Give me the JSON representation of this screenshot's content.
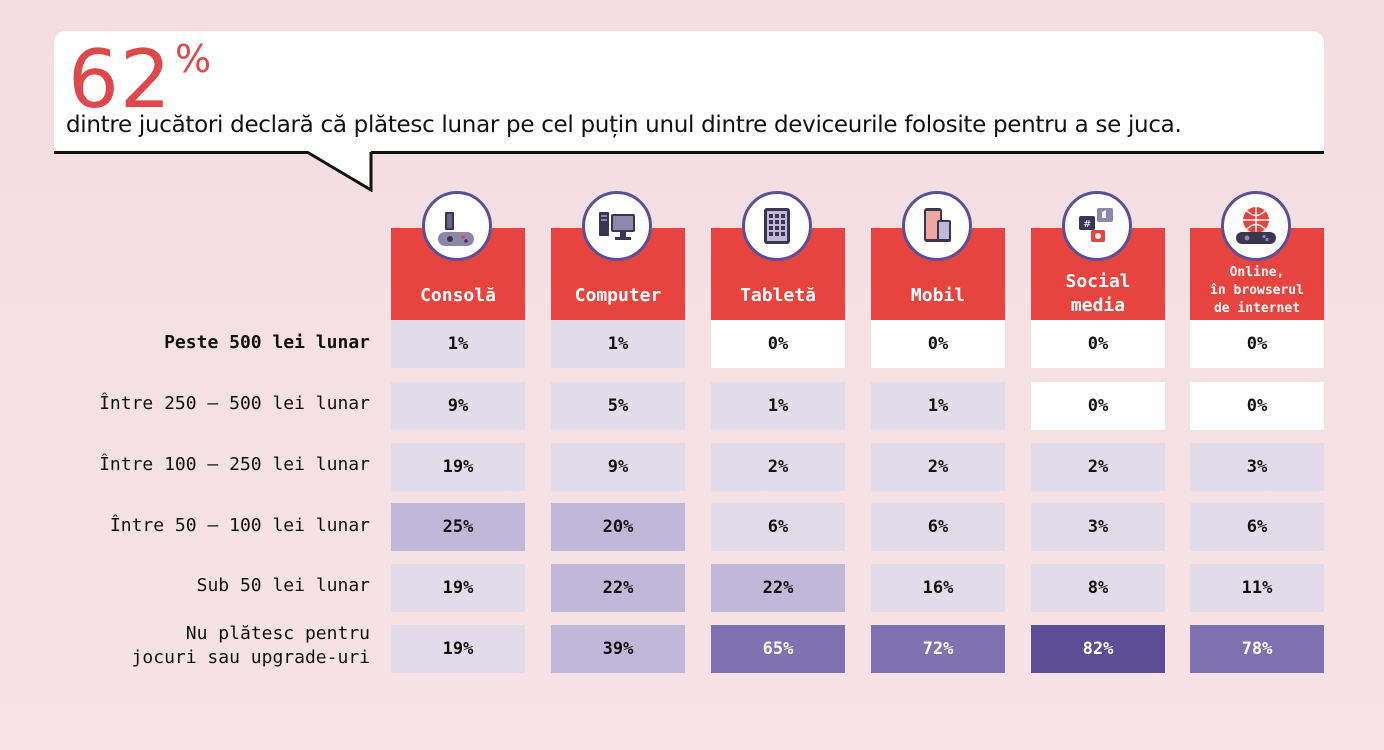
{
  "header": {
    "big_value": "62",
    "big_unit": "%",
    "subtitle": "dintre jucători declară că plătesc lunar pe cel puțin unul dintre deviceurile folosite pentru a se juca."
  },
  "chart_data": {
    "type": "table",
    "columns": [
      {
        "label": "Consolă",
        "icon": "console-gamepad-icon"
      },
      {
        "label": "Computer",
        "icon": "desktop-computer-icon"
      },
      {
        "label": "Tabletă",
        "icon": "tablet-icon"
      },
      {
        "label": "Mobil",
        "icon": "mobile-phone-icon"
      },
      {
        "label": "Social\nmedia",
        "icon": "social-media-icon"
      },
      {
        "label": "Online,\nîn browserul\nde internet",
        "icon": "online-globe-gamepad-icon"
      }
    ],
    "rows": [
      {
        "label": "Peste 500 lei lunar",
        "values": [
          "1%",
          "1%",
          "0%",
          "0%",
          "0%",
          "0%"
        ]
      },
      {
        "label": "Între 250 – 500 lei lunar",
        "values": [
          "9%",
          "5%",
          "1%",
          "1%",
          "0%",
          "0%"
        ]
      },
      {
        "label": "Între 100 – 250 lei lunar",
        "values": [
          "19%",
          "9%",
          "2%",
          "2%",
          "2%",
          "3%"
        ]
      },
      {
        "label": "Între 50 – 100 lei lunar",
        "values": [
          "25%",
          "20%",
          "6%",
          "6%",
          "3%",
          "6%"
        ]
      },
      {
        "label": "Sub 50 lei lunar",
        "values": [
          "19%",
          "22%",
          "22%",
          "16%",
          "8%",
          "11%"
        ]
      },
      {
        "label": "Nu plătesc pentru\njocuri sau upgrade-uri",
        "values": [
          "19%",
          "39%",
          "65%",
          "72%",
          "82%",
          "78%"
        ]
      }
    ],
    "colors": {
      "header_bg": "#e8443f",
      "accent": "#e0474a",
      "scale": [
        "#ffffff",
        "#e2dcea",
        "#c0b8d8",
        "#7e72b0",
        "#5b4d96"
      ]
    }
  }
}
